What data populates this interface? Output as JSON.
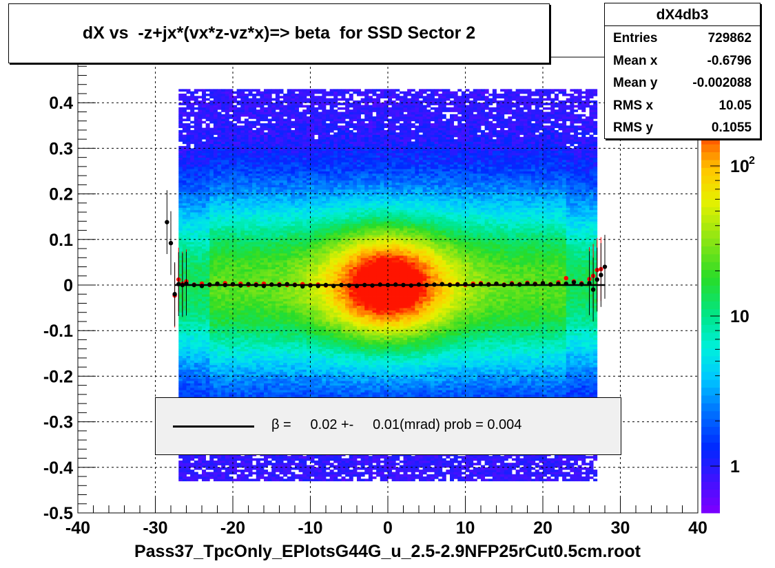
{
  "chart_data": {
    "type": "heatmap",
    "title": "dX vs  -z+jx*(vx*z-vz*x)=> beta  for SSD Sector 2",
    "xlabel": "Pass37_TpcOnly_EPlotsG44G_u_2.5-2.9NFP25rCut0.5cm.root",
    "ylabel": "",
    "xlim": [
      -40,
      40
    ],
    "ylim": [
      -0.5,
      0.5
    ],
    "x_ticks": [
      "-40",
      "-30",
      "-20",
      "-10",
      "0",
      "10",
      "20",
      "30",
      "40"
    ],
    "y_ticks": [
      "-0.5",
      "-0.4",
      "-0.3",
      "-0.2",
      "-0.1",
      "0",
      "0.1",
      "0.2",
      "0.3",
      "0.4"
    ],
    "grid": true,
    "colorbar": {
      "scale": "log",
      "labels": [
        {
          "value": 1,
          "text": "1"
        },
        {
          "value": 10,
          "text": "10"
        },
        {
          "value": 100,
          "text": "10",
          "sup": "2"
        }
      ]
    },
    "stats": {
      "name": "dX4db3",
      "rows": [
        {
          "label": "Entries",
          "value": "729862"
        },
        {
          "label": "Mean x",
          "value": "-0.6796"
        },
        {
          "label": "Mean y",
          "value": "-0.002088"
        },
        {
          "label": "RMS x",
          "value": "10.05"
        },
        {
          "label": "RMS y",
          "value": "0.1055"
        }
      ]
    },
    "legend": {
      "text": "β =     0.02 +-     0.01(mrad) prob = 0.004",
      "placement": "bottom-center"
    },
    "fit_line": {
      "x": [
        -27.5,
        28
      ],
      "y": [
        0.0,
        0.0
      ],
      "color": "#000000"
    },
    "profile_black": {
      "x": [
        -28.5,
        -28,
        -27.5,
        -27,
        -26.5,
        -26,
        -25,
        -24,
        -23,
        -22,
        -21,
        -20,
        -19,
        -18,
        -17,
        -16,
        -15,
        -14,
        -13,
        -12,
        -11,
        -10,
        -9,
        -8,
        -7,
        -6,
        -5,
        -4,
        -3,
        -2,
        -1,
        0,
        1,
        2,
        3,
        4,
        5,
        6,
        7,
        8,
        9,
        10,
        11,
        12,
        13,
        14,
        15,
        16,
        17,
        18,
        19,
        20,
        21,
        22,
        23,
        24,
        25,
        26,
        26.5,
        27,
        27.5,
        28
      ],
      "y": [
        0.138,
        0.092,
        -0.02,
        0.002,
        0.0,
        0.003,
        0.0,
        -0.002,
        0.001,
        0.003,
        0.0,
        0.002,
        -0.001,
        0.002,
        0.0,
        -0.002,
        0.001,
        0.0,
        0.002,
        0.0,
        -0.003,
        -0.001,
        -0.002,
        0.0,
        -0.002,
        0.0,
        -0.001,
        -0.002,
        0.0,
        -0.001,
        0.001,
        0.0,
        0.001,
        0.0,
        -0.001,
        0.001,
        0.0,
        0.001,
        0.002,
        0.0,
        0.001,
        0.002,
        0.0,
        0.002,
        0.001,
        0.003,
        0.0,
        0.002,
        0.001,
        0.003,
        0.002,
        0.004,
        0.001,
        0.003,
        0.003,
        0.006,
        0.002,
        0.004,
        -0.01,
        0.012,
        0.022,
        0.04
      ]
    },
    "profile_red": {
      "x": [
        -27.5,
        -27,
        -26.5,
        -26,
        -25,
        -24,
        -23,
        -22,
        -21,
        -20,
        -19,
        -18,
        -17,
        -16,
        -15,
        -14,
        -13,
        -12,
        -11,
        -10,
        -9,
        -8,
        8,
        9,
        10,
        11,
        12,
        13,
        14,
        15,
        16,
        17,
        18,
        19,
        20,
        21,
        22,
        23,
        24,
        25,
        26,
        26.5,
        27,
        27.5
      ],
      "y": [
        -0.023,
        0.012,
        0.003,
        0.008,
        0.001,
        0.003,
        0.0,
        0.002,
        0.004,
        0.001,
        0.003,
        0.0,
        0.002,
        0.003,
        0.001,
        0.002,
        0.0,
        0.001,
        0.002,
        0.0,
        0.001,
        -0.001,
        0.001,
        0.002,
        0.0,
        0.003,
        0.004,
        0.002,
        0.003,
        0.001,
        0.004,
        0.002,
        0.005,
        0.003,
        0.004,
        0.002,
        0.006,
        0.015,
        0.008,
        0.004,
        0.013,
        0.02,
        0.033,
        0.035
      ]
    }
  }
}
